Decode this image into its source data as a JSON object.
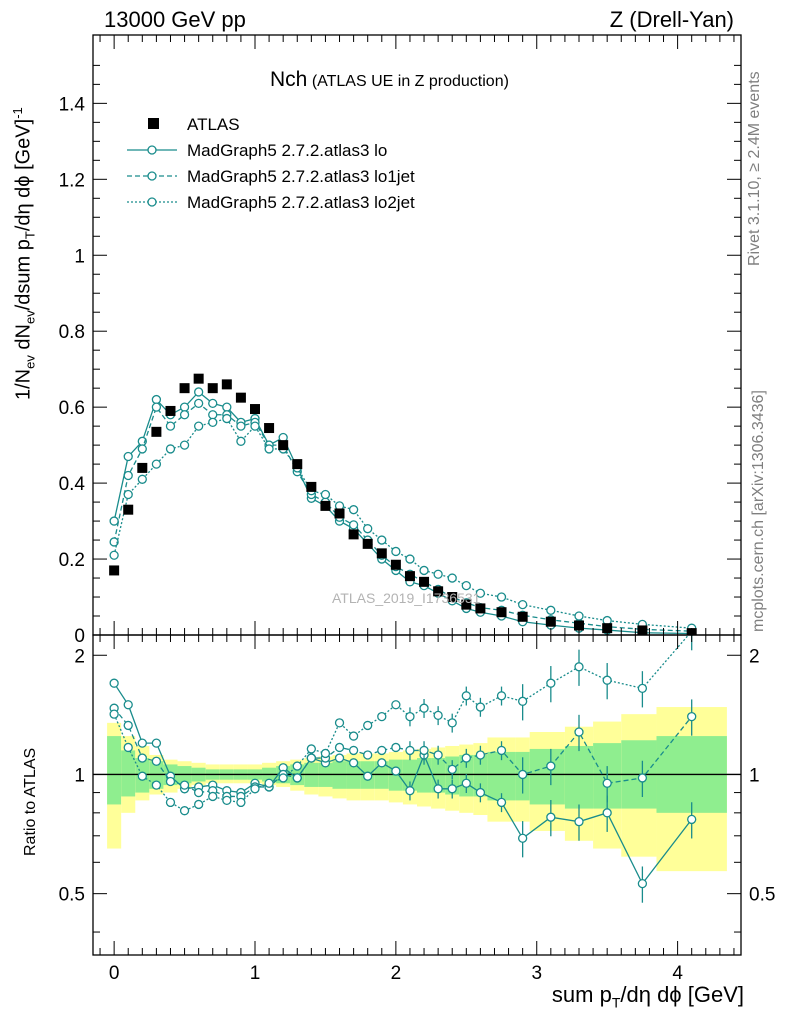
{
  "header": {
    "left": "13000 GeV pp",
    "right": "Z (Drell-Yan)"
  },
  "plot_title": {
    "main": "Nch",
    "sub": "(ATLAS UE in Z production)"
  },
  "side_text": {
    "rivet": "Rivet 3.1.10, ≥ 2.4M events",
    "mcplots": "mcplots.cern.ch [arXiv:1306.3436]"
  },
  "watermark": "ATLAS_2019_I1736531",
  "legend": [
    {
      "label": "ATLAS",
      "style": "square"
    },
    {
      "label": "MadGraph5 2.7.2.atlas3 lo",
      "style": "solid"
    },
    {
      "label": "MadGraph5 2.7.2.atlas3 lo1jet",
      "style": "dashed"
    },
    {
      "label": "MadGraph5 2.7.2.atlas3 lo2jet",
      "style": "dotted"
    }
  ],
  "colors": {
    "data": "#000000",
    "mc": "#198c8c",
    "band_inner": "#8fee8f",
    "band_outer": "#ffff99"
  },
  "chart_data": [
    {
      "type": "scatter",
      "panel": "main",
      "ylabel": "1/N_ev dN_ev/dsum p_T/dη dϕ [GeV]^-1",
      "xlim": [
        -0.15,
        4.45
      ],
      "ylim": [
        0,
        1.58
      ],
      "yticks": [
        "0",
        "0.2",
        "0.4",
        "0.6",
        "0.8",
        "1",
        "1.2",
        "1.4"
      ],
      "x": [
        0.0,
        0.1,
        0.2,
        0.3,
        0.4,
        0.5,
        0.6,
        0.7,
        0.8,
        0.9,
        1.0,
        1.1,
        1.2,
        1.3,
        1.4,
        1.5,
        1.6,
        1.7,
        1.8,
        1.9,
        2.0,
        2.1,
        2.2,
        2.3,
        2.4,
        2.5,
        2.6,
        2.75,
        2.9,
        3.1,
        3.3,
        3.5,
        3.75,
        4.1
      ],
      "series": [
        {
          "name": "ATLAS",
          "values": [
            0.17,
            0.33,
            0.44,
            0.535,
            0.59,
            0.65,
            0.675,
            0.65,
            0.66,
            0.625,
            0.595,
            0.545,
            0.5,
            0.45,
            0.39,
            0.34,
            0.32,
            0.265,
            0.24,
            0.215,
            0.185,
            0.155,
            0.14,
            0.115,
            0.1,
            0.08,
            0.07,
            0.06,
            0.048,
            0.035,
            0.025,
            0.018,
            0.012,
            0.005
          ]
        },
        {
          "name": "MadGraph5 2.7.2.atlas3 lo",
          "values": [
            0.3,
            0.47,
            0.51,
            0.62,
            0.58,
            0.6,
            0.64,
            0.61,
            0.6,
            0.56,
            0.57,
            0.5,
            0.52,
            0.44,
            0.36,
            0.34,
            0.3,
            0.28,
            0.24,
            0.2,
            0.17,
            0.14,
            0.13,
            0.11,
            0.09,
            0.07,
            0.06,
            0.05,
            0.035,
            0.026,
            0.018,
            0.013,
            0.006,
            0.004
          ]
        },
        {
          "name": "MadGraph5 2.7.2.atlas3 lo1jet",
          "values": [
            0.245,
            0.42,
            0.49,
            0.6,
            0.55,
            0.58,
            0.61,
            0.58,
            0.58,
            0.55,
            0.56,
            0.5,
            0.5,
            0.43,
            0.37,
            0.35,
            0.31,
            0.29,
            0.25,
            0.21,
            0.18,
            0.16,
            0.14,
            0.12,
            0.1,
            0.085,
            0.072,
            0.065,
            0.052,
            0.04,
            0.031,
            0.022,
            0.015,
            0.01
          ]
        },
        {
          "name": "MadGraph5 2.7.2.atlas3 lo2jet",
          "values": [
            0.21,
            0.37,
            0.41,
            0.45,
            0.49,
            0.5,
            0.55,
            0.56,
            0.57,
            0.51,
            0.55,
            0.49,
            0.49,
            0.44,
            0.38,
            0.37,
            0.34,
            0.33,
            0.28,
            0.25,
            0.22,
            0.2,
            0.17,
            0.16,
            0.15,
            0.13,
            0.11,
            0.1,
            0.08,
            0.065,
            0.05,
            0.038,
            0.028,
            0.018
          ]
        }
      ]
    },
    {
      "type": "scatter",
      "panel": "ratio",
      "xlabel": "sum p_T/dη dϕ [GeV]",
      "ylabel": "Ratio to ATLAS",
      "xlim": [
        -0.15,
        4.45
      ],
      "ylim": [
        0.35,
        2.25
      ],
      "yticks": [
        "0.5",
        "1",
        "2"
      ],
      "xticks": [
        "0",
        "1",
        "2",
        "3",
        "4"
      ],
      "x": [
        0.0,
        0.1,
        0.2,
        0.3,
        0.4,
        0.5,
        0.6,
        0.7,
        0.8,
        0.9,
        1.0,
        1.1,
        1.2,
        1.3,
        1.4,
        1.5,
        1.6,
        1.7,
        1.8,
        1.9,
        2.0,
        2.1,
        2.2,
        2.3,
        2.4,
        2.5,
        2.6,
        2.75,
        2.9,
        3.1,
        3.3,
        3.5,
        3.75,
        4.1
      ],
      "bands": {
        "edges": [
          -0.05,
          0.05,
          0.15,
          0.25,
          0.35,
          0.45,
          0.55,
          0.65,
          0.75,
          0.85,
          0.95,
          1.05,
          1.15,
          1.25,
          1.35,
          1.45,
          1.55,
          1.65,
          1.75,
          1.85,
          1.95,
          2.05,
          2.15,
          2.25,
          2.35,
          2.45,
          2.55,
          2.65,
          2.85,
          2.95,
          3.2,
          3.4,
          3.6,
          3.85,
          4.35
        ],
        "inner_low": [
          0.84,
          0.88,
          0.9,
          0.92,
          0.94,
          0.95,
          0.96,
          0.97,
          0.97,
          0.97,
          0.97,
          0.96,
          0.95,
          0.94,
          0.93,
          0.93,
          0.92,
          0.92,
          0.92,
          0.92,
          0.91,
          0.91,
          0.9,
          0.9,
          0.89,
          0.88,
          0.88,
          0.86,
          0.86,
          0.84,
          0.82,
          0.82,
          0.82,
          0.8
        ],
        "inner_high": [
          1.25,
          1.15,
          1.1,
          1.08,
          1.06,
          1.05,
          1.04,
          1.03,
          1.03,
          1.03,
          1.03,
          1.04,
          1.05,
          1.06,
          1.07,
          1.07,
          1.08,
          1.08,
          1.08,
          1.08,
          1.09,
          1.09,
          1.1,
          1.1,
          1.11,
          1.12,
          1.12,
          1.14,
          1.14,
          1.16,
          1.18,
          1.2,
          1.22,
          1.25
        ],
        "outer_low": [
          0.65,
          0.8,
          0.86,
          0.89,
          0.9,
          0.92,
          0.94,
          0.95,
          0.95,
          0.95,
          0.95,
          0.94,
          0.93,
          0.91,
          0.89,
          0.88,
          0.87,
          0.86,
          0.86,
          0.86,
          0.85,
          0.84,
          0.83,
          0.82,
          0.81,
          0.8,
          0.79,
          0.76,
          0.76,
          0.72,
          0.68,
          0.65,
          0.62,
          0.57
        ],
        "outer_high": [
          1.35,
          1.25,
          1.18,
          1.12,
          1.09,
          1.08,
          1.07,
          1.06,
          1.06,
          1.06,
          1.06,
          1.07,
          1.08,
          1.09,
          1.1,
          1.11,
          1.12,
          1.13,
          1.13,
          1.13,
          1.14,
          1.15,
          1.16,
          1.17,
          1.18,
          1.19,
          1.2,
          1.24,
          1.24,
          1.28,
          1.32,
          1.36,
          1.42,
          1.48
        ]
      },
      "series": [
        {
          "name": "MadGraph5 2.7.2.atlas3 lo",
          "values": [
            1.7,
            1.5,
            1.2,
            1.2,
            0.99,
            0.92,
            0.93,
            0.94,
            0.91,
            0.9,
            0.95,
            0.93,
            1.04,
            0.98,
            1.1,
            1.07,
            1.1,
            1.07,
            0.99,
            1.07,
            1.02,
            0.91,
            1.12,
            0.92,
            0.92,
            0.95,
            0.9,
            0.85,
            0.69,
            0.78,
            0.76,
            0.8,
            0.53,
            0.77
          ]
        },
        {
          "name": "MadGraph5 2.7.2.atlas3 lo1jet",
          "values": [
            1.47,
            1.33,
            1.1,
            1.08,
            0.96,
            0.94,
            0.9,
            0.91,
            0.88,
            0.88,
            0.93,
            0.93,
            1.0,
            0.98,
            1.1,
            1.1,
            1.17,
            1.15,
            1.12,
            1.15,
            1.17,
            1.15,
            1.15,
            1.12,
            1.03,
            1.1,
            1.12,
            1.15,
            1.0,
            1.05,
            1.28,
            0.95,
            0.98,
            1.4
          ]
        },
        {
          "name": "MadGraph5 2.7.2.atlas3 lo2jet",
          "values": [
            1.42,
            1.17,
            0.99,
            0.94,
            0.85,
            0.81,
            0.84,
            0.88,
            0.86,
            0.85,
            0.92,
            0.95,
            0.98,
            1.05,
            1.16,
            1.13,
            1.35,
            1.25,
            1.33,
            1.4,
            1.5,
            1.4,
            1.47,
            1.41,
            1.35,
            1.58,
            1.48,
            1.58,
            1.53,
            1.7,
            1.87,
            1.73,
            1.65,
            2.3
          ]
        }
      ]
    }
  ]
}
